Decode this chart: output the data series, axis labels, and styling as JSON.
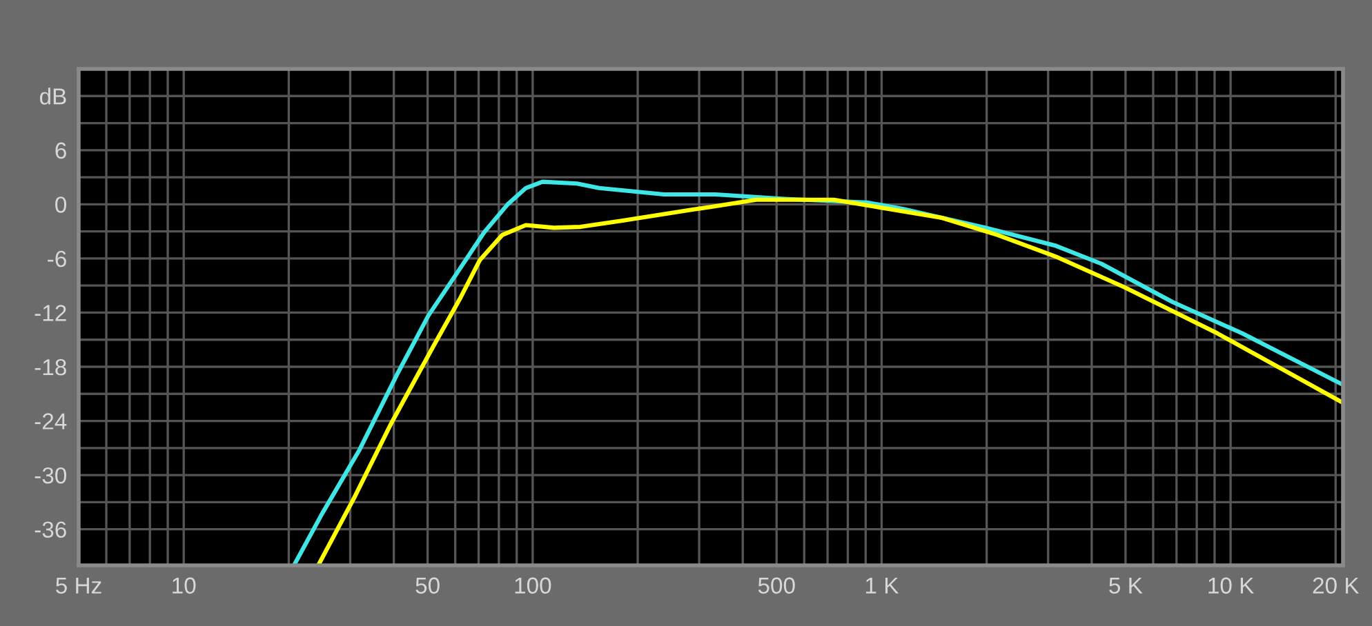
{
  "chart_data": {
    "type": "line",
    "log": "x",
    "grid": true,
    "marker": "none",
    "line_style": "solid",
    "xlim": [
      5,
      21000
    ],
    "ylim": [
      -40,
      15
    ],
    "xticks": [
      {
        "value": 5,
        "label": "5 Hz"
      },
      {
        "value": 6,
        "label": null
      },
      {
        "value": 7,
        "label": null
      },
      {
        "value": 8,
        "label": null
      },
      {
        "value": 9,
        "label": null
      },
      10,
      {
        "value": 20,
        "label": null
      },
      {
        "value": 30,
        "label": null
      },
      {
        "value": 40,
        "label": null
      },
      50,
      {
        "value": 60,
        "label": null
      },
      {
        "value": 70,
        "label": null
      },
      {
        "value": 80,
        "label": null
      },
      {
        "value": 90,
        "label": null
      },
      100,
      {
        "value": 200,
        "label": null
      },
      {
        "value": 300,
        "label": null
      },
      {
        "value": 400,
        "label": null
      },
      500,
      {
        "value": 600,
        "label": null
      },
      {
        "value": 700,
        "label": null
      },
      {
        "value": 800,
        "label": null
      },
      {
        "value": 900,
        "label": null
      },
      {
        "value": 1000,
        "label": "1 K"
      },
      {
        "value": 2000,
        "label": null
      },
      {
        "value": 3000,
        "label": null
      },
      {
        "value": 4000,
        "label": null
      },
      {
        "value": 5000,
        "label": "5 K"
      },
      {
        "value": 6000,
        "label": null
      },
      {
        "value": 7000,
        "label": null
      },
      {
        "value": 8000,
        "label": null
      },
      {
        "value": 9000,
        "label": null
      },
      {
        "value": 10000,
        "label": "10 K"
      },
      {
        "value": 20000,
        "label": "20 K"
      }
    ],
    "yticks": [
      {
        "value": 12,
        "label": "dB"
      },
      {
        "value": 9,
        "label": null
      },
      6,
      {
        "value": 3,
        "label": null
      },
      0,
      {
        "value": -3,
        "label": null
      },
      -6,
      {
        "value": -9,
        "label": null
      },
      -12,
      {
        "value": -15,
        "label": null
      },
      -18,
      {
        "value": -21,
        "label": null
      },
      -24,
      {
        "value": -27,
        "label": null
      },
      -30,
      {
        "value": -33,
        "label": null
      },
      -36
    ],
    "series": [
      {
        "color": "#3ee6e6",
        "x": [
          20.7,
          24.9,
          31.9,
          40.8,
          50.3,
          60.5,
          72.6,
          84.8,
          95.6,
          106.7,
          134,
          155,
          238,
          334,
          526,
          909,
          1150,
          1990,
          3160,
          4270,
          6800,
          10800,
          21000
        ],
        "values": [
          -40,
          -34.3,
          -27.2,
          -18.9,
          -12.3,
          -7.7,
          -3.1,
          0,
          1.8,
          2.5,
          2.3,
          1.8,
          1.1,
          1.1,
          0.6,
          0.2,
          -0.5,
          -2.6,
          -4.6,
          -6.6,
          -10.8,
          -14.3,
          -20
        ]
      },
      {
        "color": "#ffff00",
        "x": [
          24.3,
          31,
          39.4,
          51.8,
          62.2,
          70.5,
          81.8,
          95.6,
          115,
          137,
          181,
          285,
          323,
          437,
          730,
          1490,
          2150,
          3160,
          4970,
          9170,
          21000
        ],
        "values": [
          -40,
          -32.3,
          -24.2,
          -15.8,
          -10.3,
          -6.2,
          -3.4,
          -2.3,
          -2.6,
          -2.5,
          -1.8,
          -0.6,
          -0.3,
          0.5,
          0.5,
          -1.5,
          -3.4,
          -5.8,
          -9.2,
          -14.3,
          -22
        ]
      }
    ]
  }
}
